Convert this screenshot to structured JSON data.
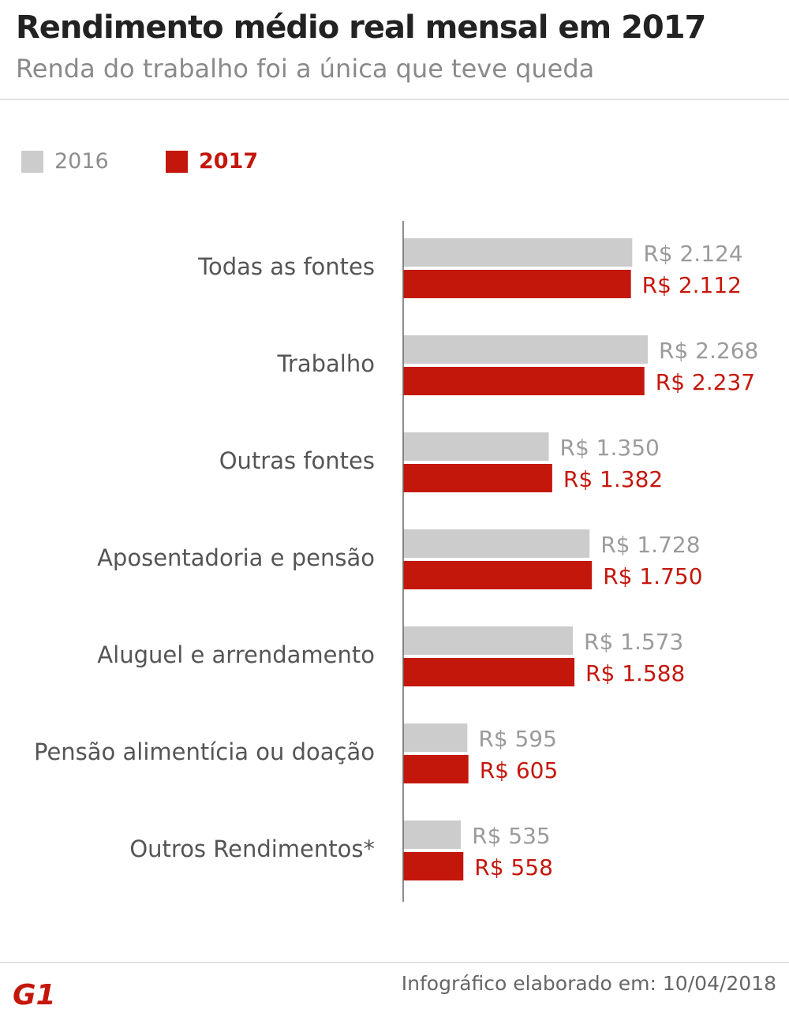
{
  "header": {
    "title": "Rendimento médio real mensal em 2017",
    "subtitle": "Renda do trabalho foi a única que teve queda"
  },
  "legend": [
    {
      "label": "2016",
      "color": "#cccccc",
      "text_color": "#8e8e8e"
    },
    {
      "label": "2017",
      "color": "#c4170c",
      "text_color": "#c4170c"
    }
  ],
  "colors": {
    "series_2016": "#cccccc",
    "series_2017": "#c4170c",
    "label_2016": "#9b9b9b",
    "label_2017": "#c4170c",
    "category_text": "#555555",
    "axis": "#666666"
  },
  "chart_data": {
    "type": "bar",
    "orientation": "horizontal",
    "title": "Rendimento médio real mensal em 2017",
    "subtitle": "Renda do trabalho foi a única que teve queda",
    "categories": [
      "Todas as fontes",
      "Trabalho",
      "Outras fontes",
      "Aposentadoria e pensão",
      "Aluguel e arrendamento",
      "Pensão alimentícia ou doação",
      "Outros Rendimentos*"
    ],
    "series": [
      {
        "name": "2016",
        "values": [
          2124,
          2268,
          1350,
          1728,
          1573,
          595,
          535
        ],
        "labels": [
          "R$ 2.124",
          "R$ 2.268",
          "R$ 1.350",
          "R$ 1.728",
          "R$ 1.573",
          "R$ 595",
          "R$ 535"
        ]
      },
      {
        "name": "2017",
        "values": [
          2112,
          2237,
          1382,
          1750,
          1588,
          605,
          558
        ],
        "labels": [
          "R$ 2.112",
          "R$ 2.237",
          "R$ 1.382",
          "R$ 1.750",
          "R$ 1.588",
          "R$ 605",
          "R$ 558"
        ]
      }
    ],
    "xlim": [
      0,
      2268
    ],
    "grid": false,
    "legend_position": "top-left"
  },
  "footer": {
    "logo_text": "G1",
    "credit": "Infográfico elaborado em: 10/04/2018"
  }
}
